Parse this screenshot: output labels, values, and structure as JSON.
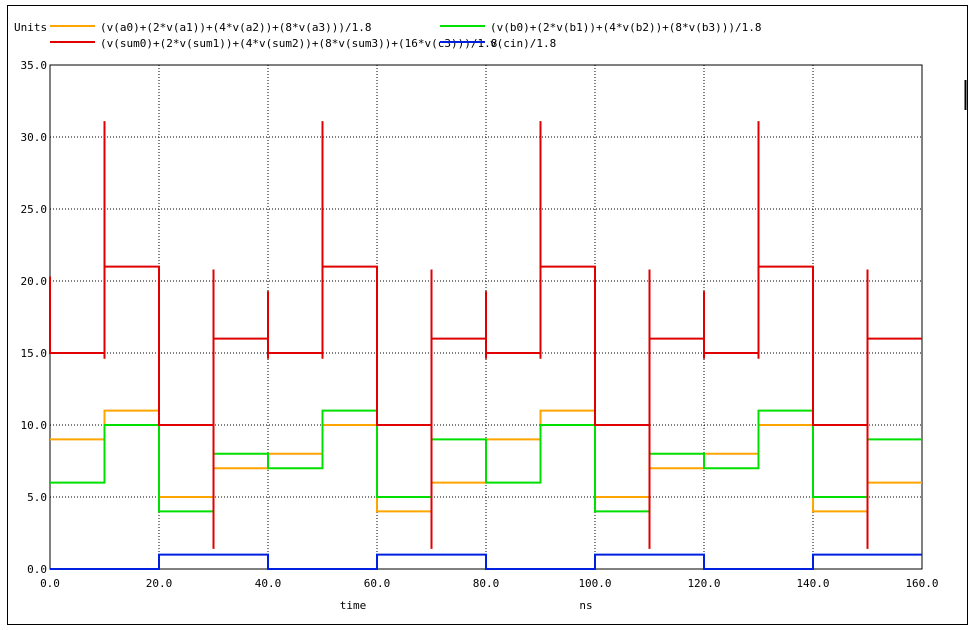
{
  "chart_data": {
    "type": "line",
    "y_unit_label": "Units",
    "xlabel": "time",
    "x_unit_label": "ns",
    "xlim": [
      0,
      160
    ],
    "ylim": [
      0,
      35
    ],
    "x_ticks": [
      "0.0",
      "20.0",
      "40.0",
      "60.0",
      "80.0",
      "100.0",
      "120.0",
      "140.0",
      "160.0"
    ],
    "y_ticks": [
      "0.0",
      "5.0",
      "10.0",
      "15.0",
      "20.0",
      "25.0",
      "30.0",
      "35.0"
    ],
    "grid": true,
    "legend_position": "top",
    "series": [
      {
        "name": "(v(a0)+(2*v(a1))+(4*v(a2))+(8*v(a3)))/1.8",
        "color": "#ffa500",
        "points": [
          [
            0,
            9
          ],
          [
            10,
            9
          ],
          [
            10,
            11
          ],
          [
            20,
            11
          ],
          [
            20,
            5
          ],
          [
            30,
            5
          ],
          [
            30,
            7
          ],
          [
            40,
            7
          ],
          [
            40,
            8
          ],
          [
            50,
            8
          ],
          [
            50,
            10
          ],
          [
            60,
            10
          ],
          [
            60,
            4
          ],
          [
            70,
            4
          ],
          [
            70,
            6
          ],
          [
            80,
            6
          ],
          [
            80,
            9
          ],
          [
            90,
            9
          ],
          [
            90,
            11
          ],
          [
            100,
            11
          ],
          [
            100,
            5
          ],
          [
            110,
            5
          ],
          [
            110,
            7
          ],
          [
            120,
            7
          ],
          [
            120,
            8
          ],
          [
            130,
            8
          ],
          [
            130,
            10
          ],
          [
            140,
            10
          ],
          [
            140,
            4
          ],
          [
            150,
            4
          ],
          [
            150,
            6
          ],
          [
            160,
            6
          ]
        ]
      },
      {
        "name": "(v(b0)+(2*v(b1))+(4*v(b2))+(8*v(b3)))/1.8",
        "color": "#00e000",
        "points": [
          [
            0,
            6
          ],
          [
            10,
            6
          ],
          [
            10,
            10
          ],
          [
            20,
            10
          ],
          [
            20,
            4
          ],
          [
            30,
            4
          ],
          [
            30,
            8
          ],
          [
            40,
            8
          ],
          [
            40,
            7
          ],
          [
            50,
            7
          ],
          [
            50,
            11
          ],
          [
            60,
            11
          ],
          [
            60,
            5
          ],
          [
            70,
            5
          ],
          [
            70,
            9
          ],
          [
            80,
            9
          ],
          [
            80,
            6
          ],
          [
            90,
            6
          ],
          [
            90,
            10
          ],
          [
            100,
            10
          ],
          [
            100,
            4
          ],
          [
            110,
            4
          ],
          [
            110,
            8
          ],
          [
            120,
            8
          ],
          [
            120,
            7
          ],
          [
            130,
            7
          ],
          [
            130,
            11
          ],
          [
            140,
            11
          ],
          [
            140,
            5
          ],
          [
            150,
            5
          ],
          [
            150,
            9
          ],
          [
            160,
            9
          ]
        ]
      },
      {
        "name": "(v(sum0)+(2*v(sum1))+(4*v(sum2))+(8*v(sum3))+(16*v(c3)))/1.8",
        "color": "#e00000",
        "points": [
          [
            0,
            20.3
          ],
          [
            0,
            15
          ],
          [
            10,
            15
          ],
          [
            10,
            14.6
          ],
          [
            10,
            31.1
          ],
          [
            10,
            21
          ],
          [
            20,
            21
          ],
          [
            20,
            20.4
          ],
          [
            20,
            10
          ],
          [
            30,
            10
          ],
          [
            30,
            20.8
          ],
          [
            30,
            1.4
          ],
          [
            30,
            16
          ],
          [
            40,
            16
          ],
          [
            40,
            19.3
          ],
          [
            40,
            14.6
          ],
          [
            40,
            15
          ],
          [
            50,
            15
          ],
          [
            50,
            14.6
          ],
          [
            50,
            31.1
          ],
          [
            50,
            21
          ],
          [
            60,
            21
          ],
          [
            60,
            20.4
          ],
          [
            60,
            10
          ],
          [
            70,
            10
          ],
          [
            70,
            20.8
          ],
          [
            70,
            1.4
          ],
          [
            70,
            16
          ],
          [
            80,
            16
          ],
          [
            80,
            19.3
          ],
          [
            80,
            14.6
          ],
          [
            80,
            15
          ],
          [
            90,
            15
          ],
          [
            90,
            14.6
          ],
          [
            90,
            31.1
          ],
          [
            90,
            21
          ],
          [
            100,
            21
          ],
          [
            100,
            20.4
          ],
          [
            100,
            10
          ],
          [
            110,
            10
          ],
          [
            110,
            20.8
          ],
          [
            110,
            1.4
          ],
          [
            110,
            16
          ],
          [
            120,
            16
          ],
          [
            120,
            19.3
          ],
          [
            120,
            14.6
          ],
          [
            120,
            15
          ],
          [
            130,
            15
          ],
          [
            130,
            14.6
          ],
          [
            130,
            31.1
          ],
          [
            130,
            21
          ],
          [
            140,
            21
          ],
          [
            140,
            20.4
          ],
          [
            140,
            10
          ],
          [
            150,
            10
          ],
          [
            150,
            20.8
          ],
          [
            150,
            1.4
          ],
          [
            150,
            16
          ],
          [
            160,
            16
          ]
        ]
      },
      {
        "name": "v(cin)/1.8",
        "color": "#0020e0",
        "points": [
          [
            0,
            0
          ],
          [
            20,
            0
          ],
          [
            20,
            1
          ],
          [
            40,
            1
          ],
          [
            40,
            0
          ],
          [
            60,
            0
          ],
          [
            60,
            1
          ],
          [
            80,
            1
          ],
          [
            80,
            0
          ],
          [
            100,
            0
          ],
          [
            100,
            1
          ],
          [
            120,
            1
          ],
          [
            120,
            0
          ],
          [
            140,
            0
          ],
          [
            140,
            1
          ],
          [
            160,
            1
          ]
        ]
      }
    ]
  }
}
